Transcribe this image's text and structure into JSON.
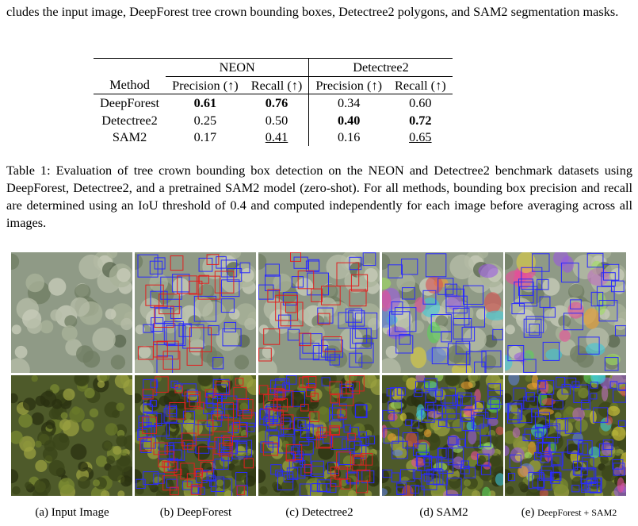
{
  "intro_text": "cludes the input image, DeepForest tree crown bounding boxes, Detectree2 polygons, and SAM2 segmentation masks.",
  "table": {
    "groups": [
      "NEON",
      "Detectree2"
    ],
    "headers": [
      "Method",
      "Precision (↑)",
      "Recall (↑)",
      "Precision (↑)",
      "Recall (↑)"
    ],
    "rows": [
      {
        "method": "DeepForest",
        "neon_precision": "0.61",
        "neon_recall": "0.76",
        "dt_precision": "0.34",
        "dt_recall": "0.60"
      },
      {
        "method": "Detectree2",
        "neon_precision": "0.25",
        "neon_recall": "0.50",
        "dt_precision": "0.40",
        "dt_recall": "0.72"
      },
      {
        "method": "SAM2",
        "neon_precision": "0.17",
        "neon_recall": "0.41",
        "dt_precision": "0.16",
        "dt_recall": "0.65"
      }
    ]
  },
  "table_caption": "Table 1: Evaluation of tree crown bounding box detection on the NEON and Detectree2 benchmark datasets using DeepForest, Detectree2, and a pretrained SAM2 model (zero-shot). For all methods, bounding box precision and recall are determined using an IoU threshold of 0.4 and computed independently for each image before averaging across all images.",
  "figure": {
    "subcaptions": [
      "(a) Input Image",
      "(b) DeepForest",
      "(c) Detectree2",
      "(d) SAM2"
    ],
    "subcaption_e_prefix": "(e) ",
    "subcaption_e_small": "DeepForest + SAM2"
  },
  "colors": {
    "box_blue": "#2a2aff",
    "box_red": "#e02020",
    "top_row_base": "#8f9a86",
    "bottom_row_base": "#4e5a2a"
  }
}
